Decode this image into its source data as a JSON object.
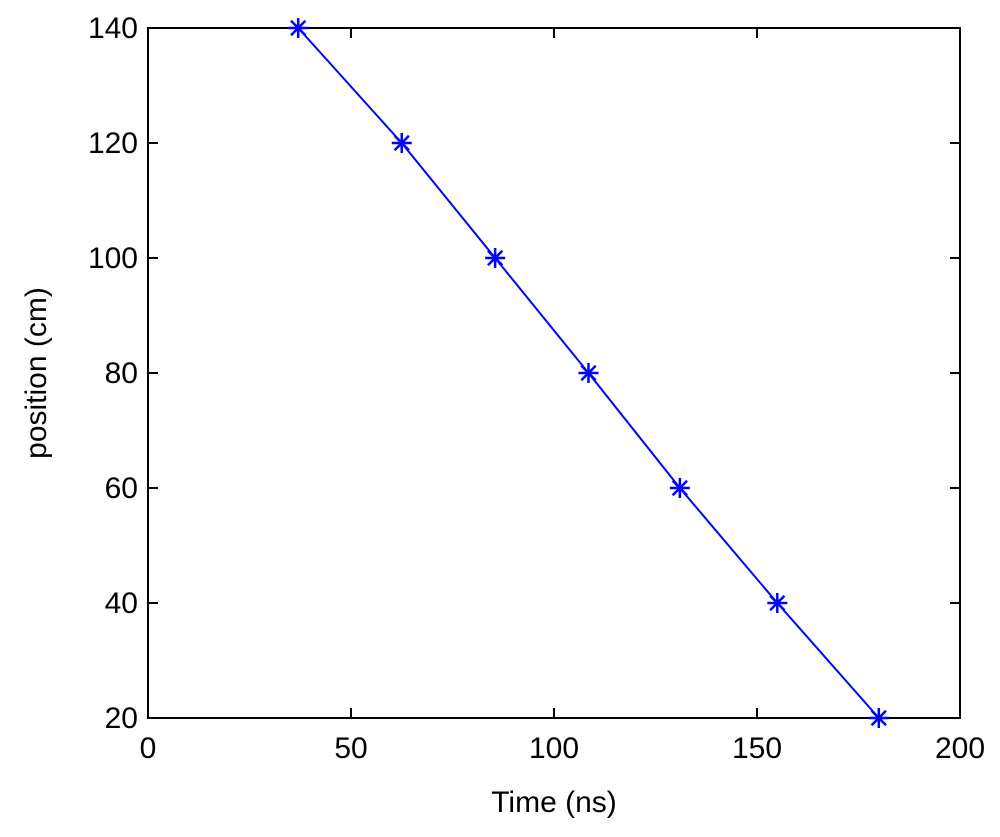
{
  "chart_data": {
    "type": "line",
    "xlabel": "Time (ns)",
    "ylabel": "position (cm)",
    "xlim": [
      0,
      200
    ],
    "ylim": [
      20,
      140
    ],
    "x_ticks": [
      0,
      50,
      100,
      150,
      200
    ],
    "y_ticks": [
      20,
      40,
      60,
      80,
      100,
      120,
      140
    ],
    "x_tick_labels": [
      "0",
      "50",
      "100",
      "150",
      "200"
    ],
    "y_tick_labels": [
      "20",
      "40",
      "60",
      "80",
      "100",
      "120",
      "140"
    ],
    "grid": false,
    "marker": "asterisk",
    "series": [
      {
        "color": "#0000ff",
        "x": [
          37,
          62.5,
          85.5,
          108.5,
          131,
          155,
          180
        ],
        "y": [
          140,
          120,
          100,
          80,
          60,
          40,
          20
        ]
      }
    ]
  }
}
